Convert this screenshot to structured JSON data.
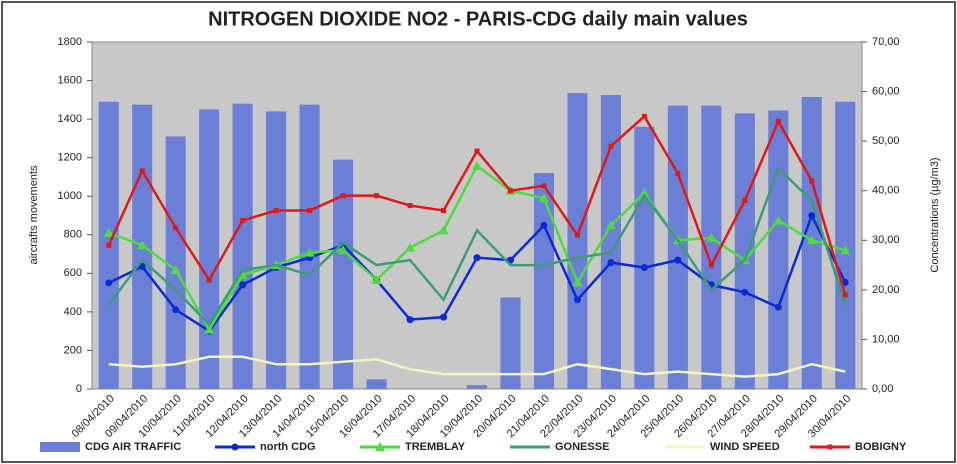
{
  "chart_data": {
    "type": "combo",
    "title": "NITROGEN DIOXIDE NO2 - PARIS-CDG daily main values",
    "y_label": "aircrafts movements",
    "y2_label": "Concentrations (µg/m3)",
    "categories": [
      "08/04/2010",
      "09/04/2010",
      "10/04/2010",
      "11/04/2010",
      "12/04/2010",
      "13/04/2010",
      "14/04/2010",
      "15/04/2010",
      "16/04/2010",
      "17/04/2010",
      "18/04/2010",
      "19/04/2010",
      "20/04/2010",
      "21/04/2010",
      "22/04/2010",
      "23/04/2010",
      "24/04/2010",
      "25/04/2010",
      "26/04/2010",
      "27/04/2010",
      "28/04/2010",
      "29/04/2010",
      "30/04/2010"
    ],
    "ylim": [
      0,
      1800
    ],
    "yticks": [
      0,
      200,
      400,
      600,
      800,
      1000,
      1200,
      1400,
      1600,
      1800
    ],
    "y2lim": [
      0,
      70
    ],
    "y2ticks": [
      {
        "value": 0,
        "label": "0,00"
      },
      {
        "value": 10,
        "label": "10,00"
      },
      {
        "value": 20,
        "label": "20,00"
      },
      {
        "value": 30,
        "label": "30,00"
      },
      {
        "value": 40,
        "label": "40,00"
      },
      {
        "value": 50,
        "label": "50,00"
      },
      {
        "value": 60,
        "label": "60,00"
      },
      {
        "value": 70,
        "label": "70,00"
      }
    ],
    "grid": false,
    "legend": "bottom",
    "series": [
      {
        "name": "CDG AIR TRAFFIC",
        "type": "bar",
        "color": "#6b7fd7",
        "values": [
          1490,
          1475,
          1310,
          1450,
          1480,
          1440,
          1475,
          1190,
          50,
          0,
          0,
          20,
          475,
          1120,
          1535,
          1525,
          1360,
          1470,
          1470,
          1430,
          1445,
          1515,
          1490
        ]
      },
      {
        "name": "north CDG",
        "type": "line",
        "axis": "y2",
        "marker": "circle",
        "color": "#0a2bd4",
        "values": [
          21.4,
          24.7,
          16,
          11.7,
          21,
          24.5,
          26.5,
          29,
          22,
          14,
          14.5,
          26.5,
          26,
          33,
          18,
          25.5,
          24.5,
          26,
          21,
          19.5,
          16.5,
          35,
          21.5
        ]
      },
      {
        "name": "TREMBLAY",
        "type": "line",
        "axis": "y2",
        "marker": "triangle",
        "color": "#4ddc3c",
        "values": [
          31.5,
          29,
          24,
          12,
          23,
          25,
          27.5,
          28,
          22,
          28.5,
          32,
          45,
          40,
          38.5,
          21.5,
          33,
          39.5,
          30,
          30.5,
          26,
          34,
          30,
          28
        ]
      },
      {
        "name": "GONESSE",
        "type": "line",
        "axis": "y2",
        "marker": "none",
        "color": "#3c9c7a",
        "values": [
          17,
          26,
          20,
          13,
          24,
          25,
          23,
          29.5,
          25,
          26,
          18,
          32,
          25,
          25,
          26.5,
          27.5,
          39,
          30,
          20,
          26,
          44.5,
          38,
          17
        ]
      },
      {
        "name": "WIND SPEED",
        "type": "line",
        "axis": "y2",
        "marker": "none",
        "color": "#f4f2c0",
        "values": [
          5,
          4.5,
          5,
          6.5,
          6.5,
          5,
          5,
          5.5,
          6,
          4,
          3,
          3,
          3,
          3,
          5,
          4,
          3,
          3.5,
          3,
          2.5,
          3,
          5,
          3.5
        ]
      },
      {
        "name": "BOBIGNY",
        "type": "line",
        "axis": "y2",
        "marker": "square",
        "color": "#e01818",
        "values": [
          29,
          44,
          32.5,
          22,
          34,
          36,
          36,
          39,
          39,
          37,
          36,
          48,
          40,
          41,
          31,
          49,
          55,
          43.5,
          25,
          38,
          54,
          42,
          19
        ]
      }
    ]
  }
}
